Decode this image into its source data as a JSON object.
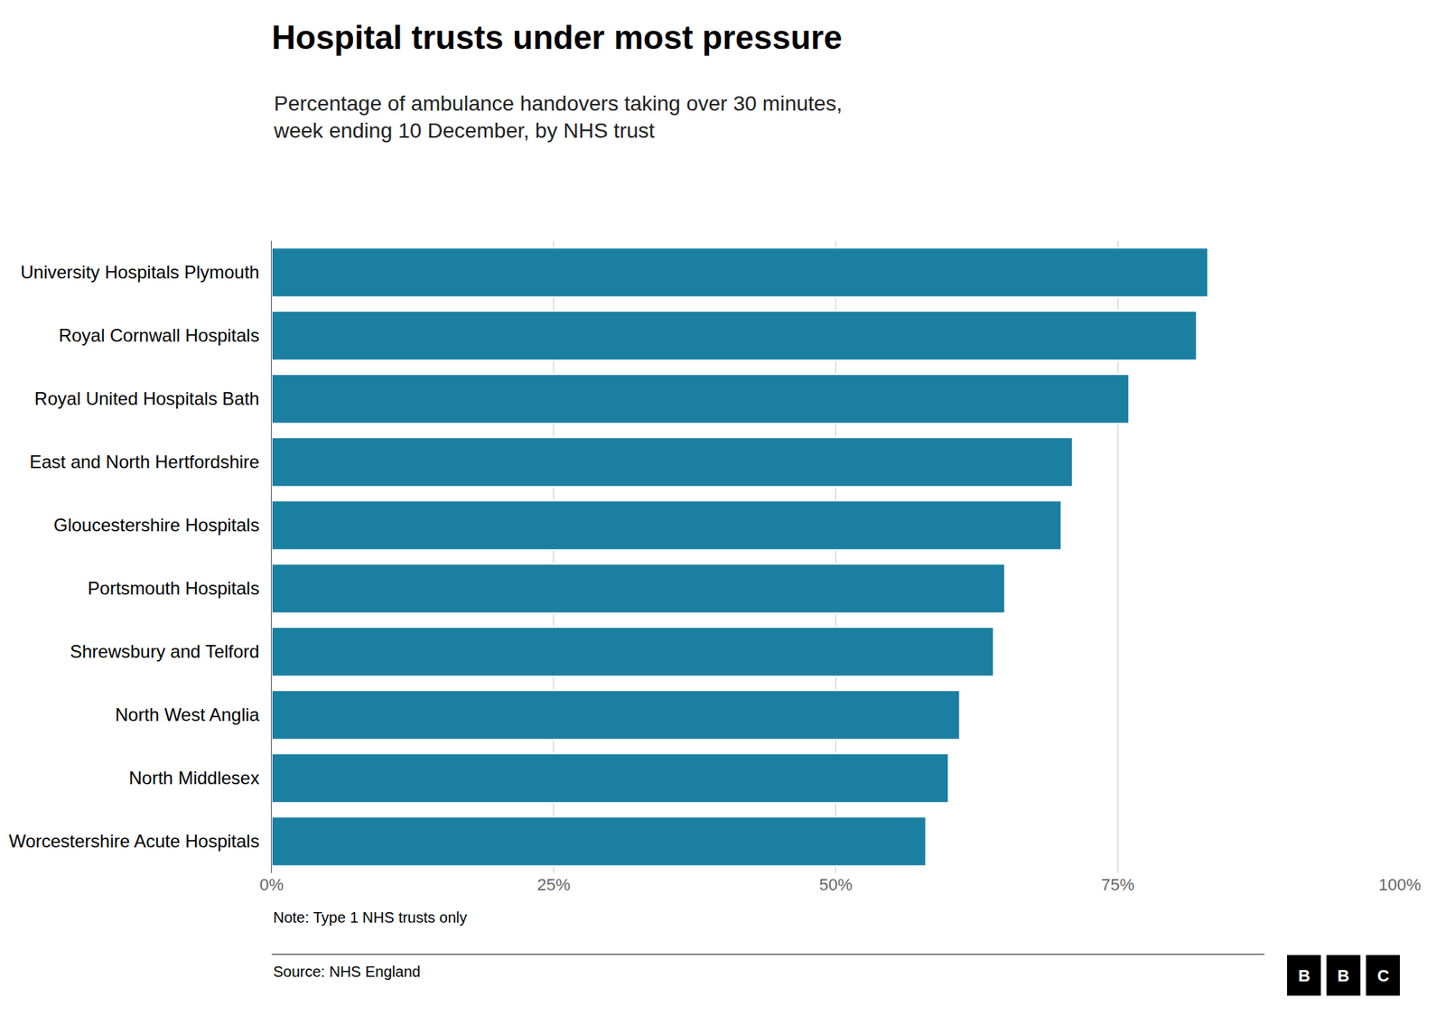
{
  "chart_data": {
    "type": "bar",
    "orientation": "horizontal",
    "title": "Hospital trusts under most pressure",
    "subtitle": "Percentage of ambulance handovers taking over 30 minutes,\nweek ending 10 December, by NHS trust",
    "note": "Note: Type 1 NHS trusts only",
    "source": "Source: NHS England",
    "logo": "BBC",
    "categories": [
      "University Hospitals Plymouth",
      "Royal Cornwall Hospitals",
      "Royal United Hospitals Bath",
      "East and North Hertfordshire",
      "Gloucestershire Hospitals",
      "Portsmouth Hospitals",
      "Shrewsbury and Telford",
      "North West Anglia",
      "North Middlesex",
      "Worcestershire Acute Hospitals"
    ],
    "values": [
      83,
      82,
      76,
      71,
      70,
      65,
      64,
      61,
      60,
      58
    ],
    "color": "#1a7fa0",
    "xlim": [
      0,
      100
    ],
    "xticks": [
      {
        "value": 0,
        "label": "0%"
      },
      {
        "value": 25,
        "label": "25%"
      },
      {
        "value": 50,
        "label": "50%"
      },
      {
        "value": 75,
        "label": "75%"
      },
      {
        "value": 100,
        "label": "100%"
      }
    ],
    "grid": true
  }
}
